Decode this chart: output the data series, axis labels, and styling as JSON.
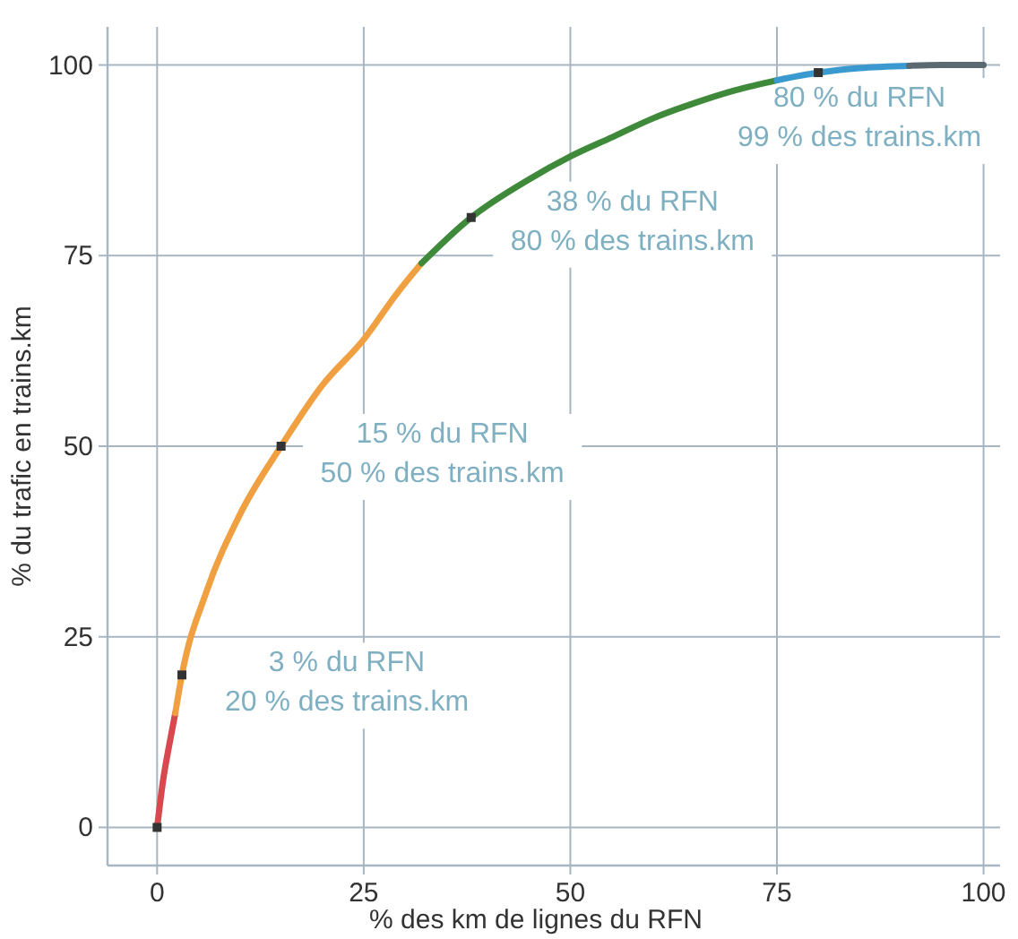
{
  "chart_data": {
    "type": "line",
    "xlabel": "% des km de lignes du RFN",
    "ylabel": "% du trafic en trains.km",
    "xlim": [
      -6,
      102
    ],
    "ylim": [
      -5,
      105
    ],
    "xticks": [
      0,
      25,
      50,
      75,
      100
    ],
    "yticks": [
      0,
      25,
      50,
      75,
      100
    ],
    "grid": true,
    "line_style": "solid",
    "series": [
      {
        "color": "#d9474f",
        "x": [
          0,
          0.7,
          1.5,
          2.2
        ],
        "values": [
          0,
          6,
          11,
          15
        ]
      },
      {
        "color": "#f0a040",
        "x": [
          2.2,
          3,
          6,
          10,
          15,
          20,
          25,
          29,
          32
        ],
        "values": [
          15,
          20,
          31,
          41,
          50,
          58,
          64,
          70,
          74
        ]
      },
      {
        "color": "#3f8a3a",
        "x": [
          32,
          38,
          45,
          50,
          55,
          60,
          65,
          70,
          75
        ],
        "values": [
          74,
          80,
          85,
          88,
          90.5,
          93,
          95,
          96.7,
          98
        ]
      },
      {
        "color": "#3a9ad0",
        "x": [
          75,
          80,
          85,
          91
        ],
        "values": [
          98,
          99,
          99.6,
          99.9
        ]
      },
      {
        "color": "#5a6a70",
        "x": [
          91,
          95,
          100
        ],
        "values": [
          99.9,
          100,
          100
        ]
      },
      {
        "type": "scatter",
        "marker": "square",
        "color": "#333333",
        "x": [
          0,
          3,
          15,
          38,
          80
        ],
        "values": [
          0,
          20,
          50,
          80,
          99
        ]
      }
    ],
    "annotations": [
      {
        "text": "3 % du RFN\n20 % des trains.km",
        "x": 3,
        "y": 20
      },
      {
        "text": "15 % du RFN\n50 % des trains.km",
        "x": 15,
        "y": 50
      },
      {
        "text": "38 % du RFN\n80 % des trains.km",
        "x": 38,
        "y": 80
      },
      {
        "text": "80 % du RFN\n99 % des trains.km",
        "x": 80,
        "y": 99
      }
    ]
  }
}
